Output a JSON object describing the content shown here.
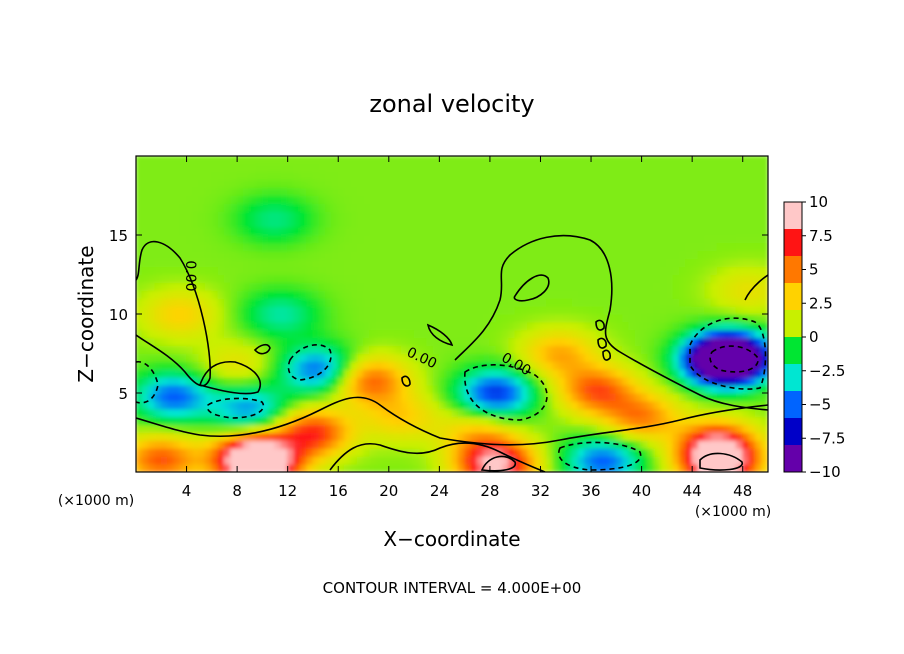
{
  "chart_data": {
    "type": "heatmap",
    "title": "zonal velocity",
    "xlabel": "X−coordinate",
    "ylabel": "Z−coordinate",
    "x_units": "(×1000 m)",
    "z_units": "(×1000 m)",
    "xlim": [
      0,
      50
    ],
    "ylim": [
      0,
      20
    ],
    "x_ticks": [
      4,
      8,
      12,
      16,
      20,
      24,
      28,
      32,
      36,
      40,
      44,
      48
    ],
    "y_ticks": [
      5,
      10,
      15
    ],
    "colorbar": {
      "min": -10,
      "max": 10,
      "ticks": [
        10,
        7.5,
        5,
        2.5,
        0,
        -2.5,
        -5,
        -7.5,
        -10
      ],
      "tick_labels": [
        "10",
        "7.5",
        "5",
        "2.5",
        "0",
        "−2.5",
        "−5",
        "−7.5",
        "−10"
      ],
      "colors": [
        "#ffc8c8",
        "#ff1414",
        "#ff7800",
        "#ffd200",
        "#c8f000",
        "#00e632",
        "#00e6d2",
        "#0064ff",
        "#0000c8",
        "#6400aa"
      ]
    },
    "contour_labels": [
      "0.00",
      "0.00",
      "0.00",
      "0.00"
    ],
    "footer": "CONTOUR INTERVAL = 4.000E+00",
    "features": [
      {
        "x": 3.0,
        "z": 4.8,
        "value": -6
      },
      {
        "x": 3.5,
        "z": 10.0,
        "value": 3
      },
      {
        "x": 2.0,
        "z": 0.8,
        "value": 6
      },
      {
        "x": 9.0,
        "z": 1.0,
        "value": 7
      },
      {
        "x": 10.0,
        "z": 0.5,
        "value": 10
      },
      {
        "x": 14.0,
        "z": 2.5,
        "value": 7
      },
      {
        "x": 9.0,
        "z": 4.0,
        "value": -5
      },
      {
        "x": 14.5,
        "z": 6.5,
        "value": -6
      },
      {
        "x": 8.0,
        "z": 6.8,
        "value": 2
      },
      {
        "x": 18.5,
        "z": 5.8,
        "value": 6
      },
      {
        "x": 21.0,
        "z": 3.5,
        "value": 3
      },
      {
        "x": 11.0,
        "z": 16.0,
        "value": -2.5
      },
      {
        "x": 11.5,
        "z": 10.0,
        "value": -3
      },
      {
        "x": 28.5,
        "z": 5.0,
        "value": -7
      },
      {
        "x": 28.5,
        "z": 0.5,
        "value": 10
      },
      {
        "x": 27.0,
        "z": 2.5,
        "value": 3
      },
      {
        "x": 33.5,
        "z": 7.5,
        "value": 4
      },
      {
        "x": 36.5,
        "z": 5.2,
        "value": 6
      },
      {
        "x": 40.0,
        "z": 3.5,
        "value": 5
      },
      {
        "x": 37.0,
        "z": 0.7,
        "value": -6
      },
      {
        "x": 46.5,
        "z": 7.0,
        "value": -9
      },
      {
        "x": 47.0,
        "z": 7.3,
        "value": -12
      },
      {
        "x": 46.0,
        "z": 1.8,
        "value": 7
      },
      {
        "x": 46.2,
        "z": 0.5,
        "value": 10
      },
      {
        "x": 48.5,
        "z": 11.5,
        "value": 2
      }
    ]
  }
}
